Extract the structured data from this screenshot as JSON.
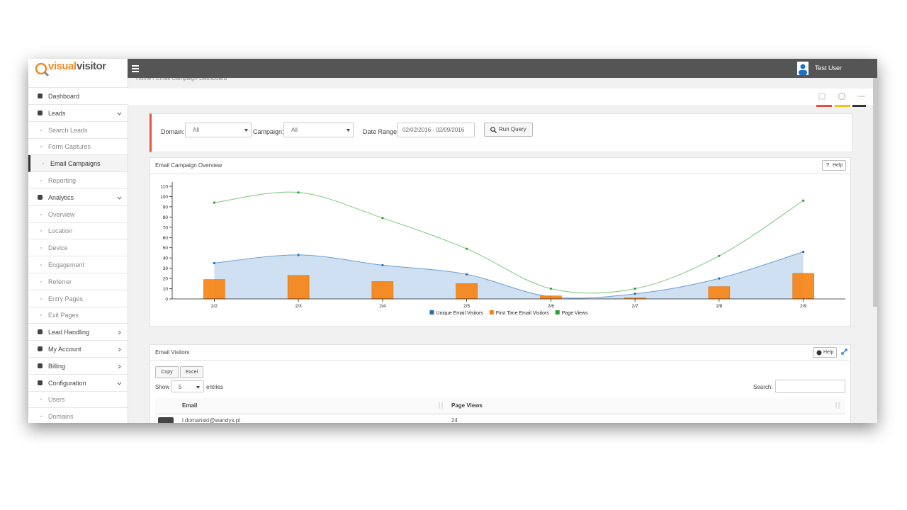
{
  "sidebar": {
    "logo": {
      "part1": "visual",
      "part2": "visitor"
    },
    "menu": [
      {
        "label": "Dashboard"
      },
      {
        "label": "Leads",
        "children": [
          {
            "label": "Search Leads"
          },
          {
            "label": "Form Captures"
          },
          {
            "label": "Email Campaigns",
            "active": true
          },
          {
            "label": "Reporting"
          }
        ]
      },
      {
        "label": "Analytics",
        "children": [
          {
            "label": "Overview"
          },
          {
            "label": "Location"
          },
          {
            "label": "Device"
          },
          {
            "label": "Engagement"
          },
          {
            "label": "Referrer"
          },
          {
            "label": "Entry Pages"
          },
          {
            "label": "Exit Pages"
          }
        ]
      },
      {
        "label": "Lead Handling",
        "collapsed": true
      },
      {
        "label": "My Account",
        "collapsed": true
      },
      {
        "label": "Billing",
        "collapsed": true
      },
      {
        "label": "Configuration",
        "children": [
          {
            "label": "Users"
          },
          {
            "label": "Domains"
          }
        ]
      }
    ]
  },
  "topbar": {
    "user": "Test User"
  },
  "breadcrumb": {
    "home": "Home",
    "separator": "/",
    "current": "Email Campaign Dashboard"
  },
  "filters": {
    "domain_label": "Domain:",
    "domain_value": "All",
    "campaign_label": "Campaign:",
    "campaign_value": "All",
    "date_label": "Date Range:",
    "date_value": "02/02/2016 - 02/09/2016",
    "button": "Run Query"
  },
  "chart_panel": {
    "title": "Email Campaign Overview",
    "help": "Help"
  },
  "chart_data": {
    "type": "combo",
    "categories": [
      "2/2",
      "2/3",
      "2/4",
      "2/5",
      "2/6",
      "2/7",
      "2/8",
      "2/9"
    ],
    "series": [
      {
        "name": "Unique Email Visitors",
        "type": "area",
        "color": "#1f6fb5",
        "values": [
          35,
          43,
          33,
          24,
          2,
          5,
          20,
          46
        ]
      },
      {
        "name": "First Time Email Visitors",
        "type": "bar",
        "color": "#f7820f",
        "values": [
          19,
          23,
          17,
          15,
          3,
          1,
          12,
          25
        ]
      },
      {
        "name": "Page Views",
        "type": "line",
        "color": "#2ca02c",
        "values": [
          94,
          104,
          79,
          49,
          10,
          10,
          42,
          96
        ]
      }
    ],
    "ylim": [
      0,
      110
    ],
    "yticks": [
      0,
      10,
      20,
      30,
      40,
      50,
      60,
      70,
      80,
      90,
      100,
      110
    ],
    "legend": "bottom"
  },
  "visitors_panel": {
    "title": "Email Visitors",
    "help": "Help",
    "buttons": [
      "Copy",
      "Excel"
    ],
    "show_label": "Show",
    "show_value": "5",
    "entries_label": "entries",
    "search_label": "Search:",
    "table": {
      "columns": [
        "Email",
        "Page Views"
      ],
      "rows": [
        [
          "l.domanski@wandys.pl",
          "24"
        ]
      ]
    }
  }
}
